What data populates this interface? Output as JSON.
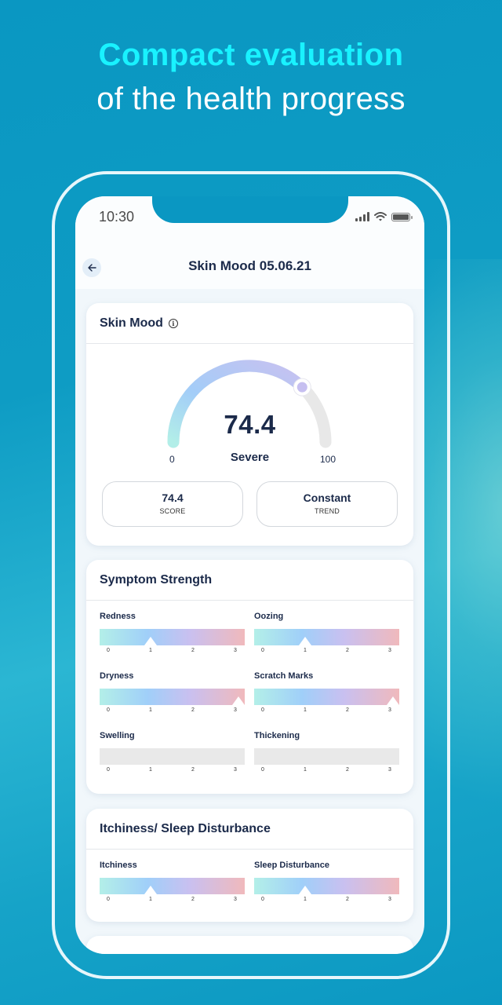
{
  "hero": {
    "title": "Compact evaluation",
    "subtitle": "of the health progress"
  },
  "status_bar": {
    "time": "10:30",
    "icons": [
      "signal-icon",
      "wifi-icon",
      "battery-icon"
    ]
  },
  "nav": {
    "back_icon": "arrow-left-icon",
    "title": "Skin Mood 05.06.21"
  },
  "skin_mood": {
    "title": "Skin Mood",
    "info_icon": "i",
    "gauge": {
      "value": "74.4",
      "label": "Severe",
      "min": "0",
      "max": "100",
      "percent": 74.4
    },
    "stats": [
      {
        "value": "74.4",
        "label": "SCORE"
      },
      {
        "value": "Constant",
        "label": "TREND"
      }
    ]
  },
  "symptom_strength": {
    "title": "Symptom Strength",
    "ticks": [
      "0",
      "1",
      "2",
      "3"
    ],
    "items": [
      {
        "label": "Redness",
        "value": 1,
        "filled": true
      },
      {
        "label": "Oozing",
        "value": 1,
        "filled": true
      },
      {
        "label": "Dryness",
        "value": 3,
        "filled": true
      },
      {
        "label": "Scratch Marks",
        "value": 3,
        "filled": true
      },
      {
        "label": "Swelling",
        "value": null,
        "filled": false
      },
      {
        "label": "Thickening",
        "value": null,
        "filled": false
      }
    ]
  },
  "itchiness_sleep": {
    "title": "Itchiness/ Sleep Disturbance",
    "ticks": [
      "0",
      "1",
      "2",
      "3"
    ],
    "items": [
      {
        "label": "Itchiness",
        "value": 1,
        "filled": true
      },
      {
        "label": "Sleep Disturbance",
        "value": 1,
        "filled": true
      }
    ]
  },
  "colors": {
    "hero_accent": "#19f2ff",
    "background": "#0a97c2",
    "text_dark": "#1b2a4a",
    "gauge_track": "#e8e8e8",
    "bar_gradient": [
      "#b3efe8",
      "#a0cff9",
      "#c9c0f0",
      "#f0b9bc"
    ]
  }
}
